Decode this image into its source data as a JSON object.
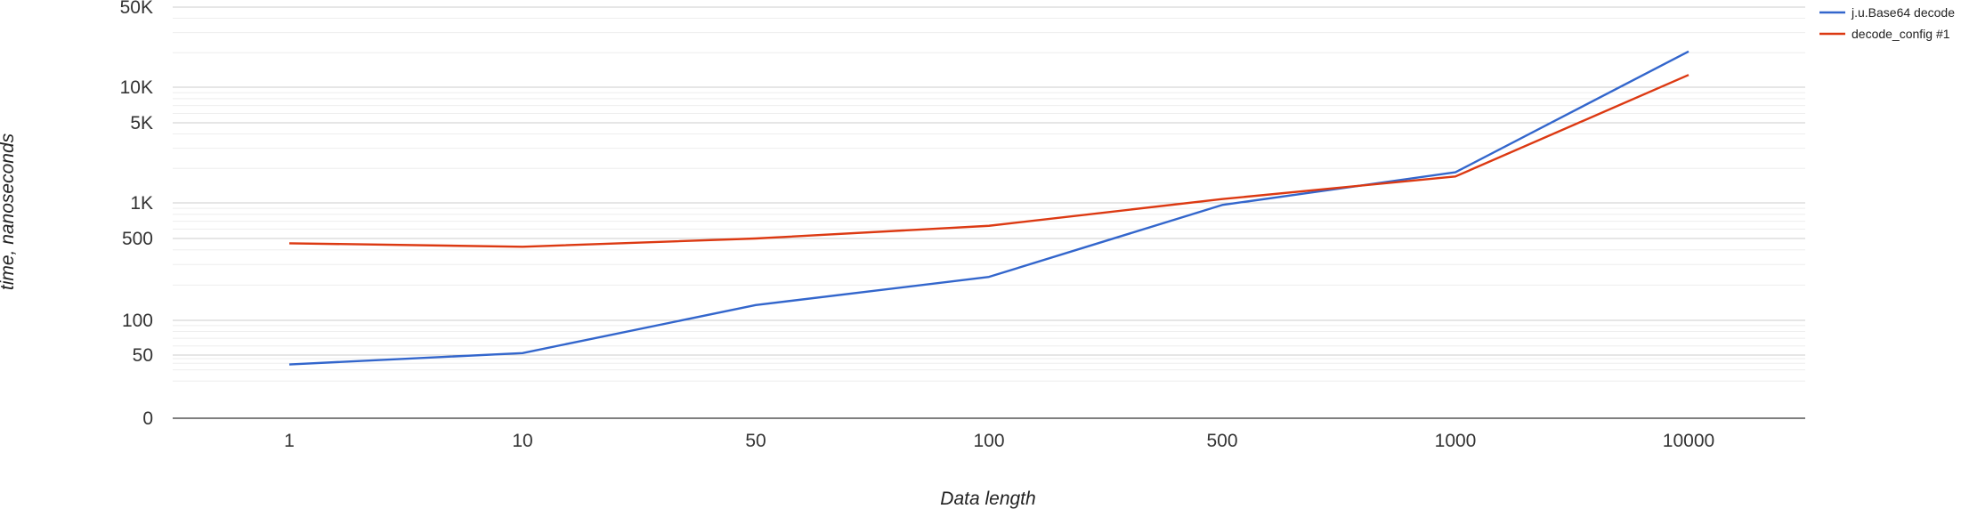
{
  "chart_data": {
    "type": "line",
    "title": "",
    "xlabel": "Data length",
    "ylabel": "time, nanoseconds",
    "categories": [
      "1",
      "10",
      "50",
      "100",
      "500",
      "1000",
      "10000"
    ],
    "y_scale": "log",
    "y_ticks": [
      {
        "value": 0,
        "label": "0"
      },
      {
        "value": 50,
        "label": "50"
      },
      {
        "value": 100,
        "label": "100"
      },
      {
        "value": 500,
        "label": "500"
      },
      {
        "value": 1000,
        "label": "1K"
      },
      {
        "value": 5000,
        "label": "5K"
      },
      {
        "value": 10000,
        "label": "10K"
      },
      {
        "value": 50000,
        "label": "50K"
      }
    ],
    "grid": true,
    "legend_position": "top-right",
    "series": [
      {
        "name": "j.u.Base64 decode",
        "color": "#3366cc",
        "values": [
          28,
          52,
          135,
          235,
          960,
          1850,
          20500
        ]
      },
      {
        "name": "decode_config #1",
        "color": "#dc3912",
        "values": [
          455,
          425,
          500,
          640,
          1080,
          1700,
          12800
        ]
      }
    ]
  }
}
